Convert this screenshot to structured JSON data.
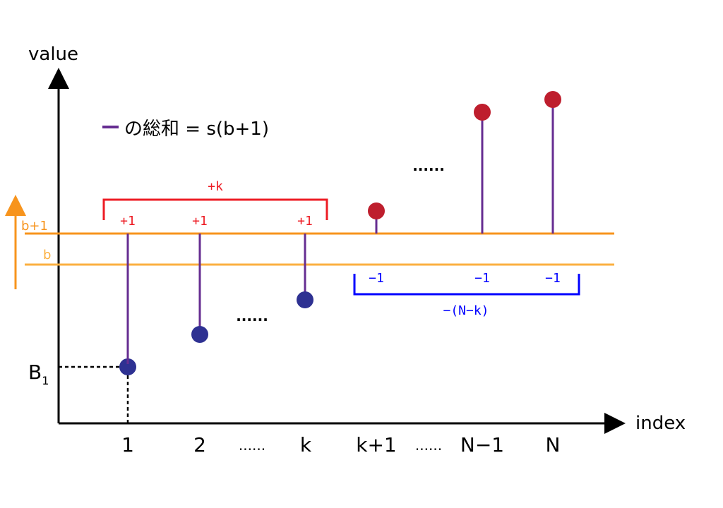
{
  "axes": {
    "y_label": "value",
    "x_label": "index"
  },
  "legend": {
    "text": "の総和 = s(b+1)"
  },
  "levels": {
    "upper": "b+1",
    "lower": "b"
  },
  "y_marker": {
    "base": "B",
    "subscript": "1"
  },
  "x_ticks": [
    "1",
    "2",
    "......",
    "k",
    "k+1",
    "......",
    "N−1",
    "N"
  ],
  "plus_group": {
    "total": "+k",
    "items": [
      "+1",
      "+1",
      "+1"
    ]
  },
  "minus_group": {
    "total": "−(N−k)",
    "items": [
      "−1",
      "−1",
      "−1"
    ]
  },
  "ellipses": {
    "lower": "......",
    "upper": "......"
  },
  "colors": {
    "below": "#2e3192",
    "above": "#be1e2d",
    "stem": "#662d91",
    "level": "#f7941d",
    "level_b": "#fbb040",
    "plus": "#ed1c24",
    "minus": "#0000ff"
  }
}
